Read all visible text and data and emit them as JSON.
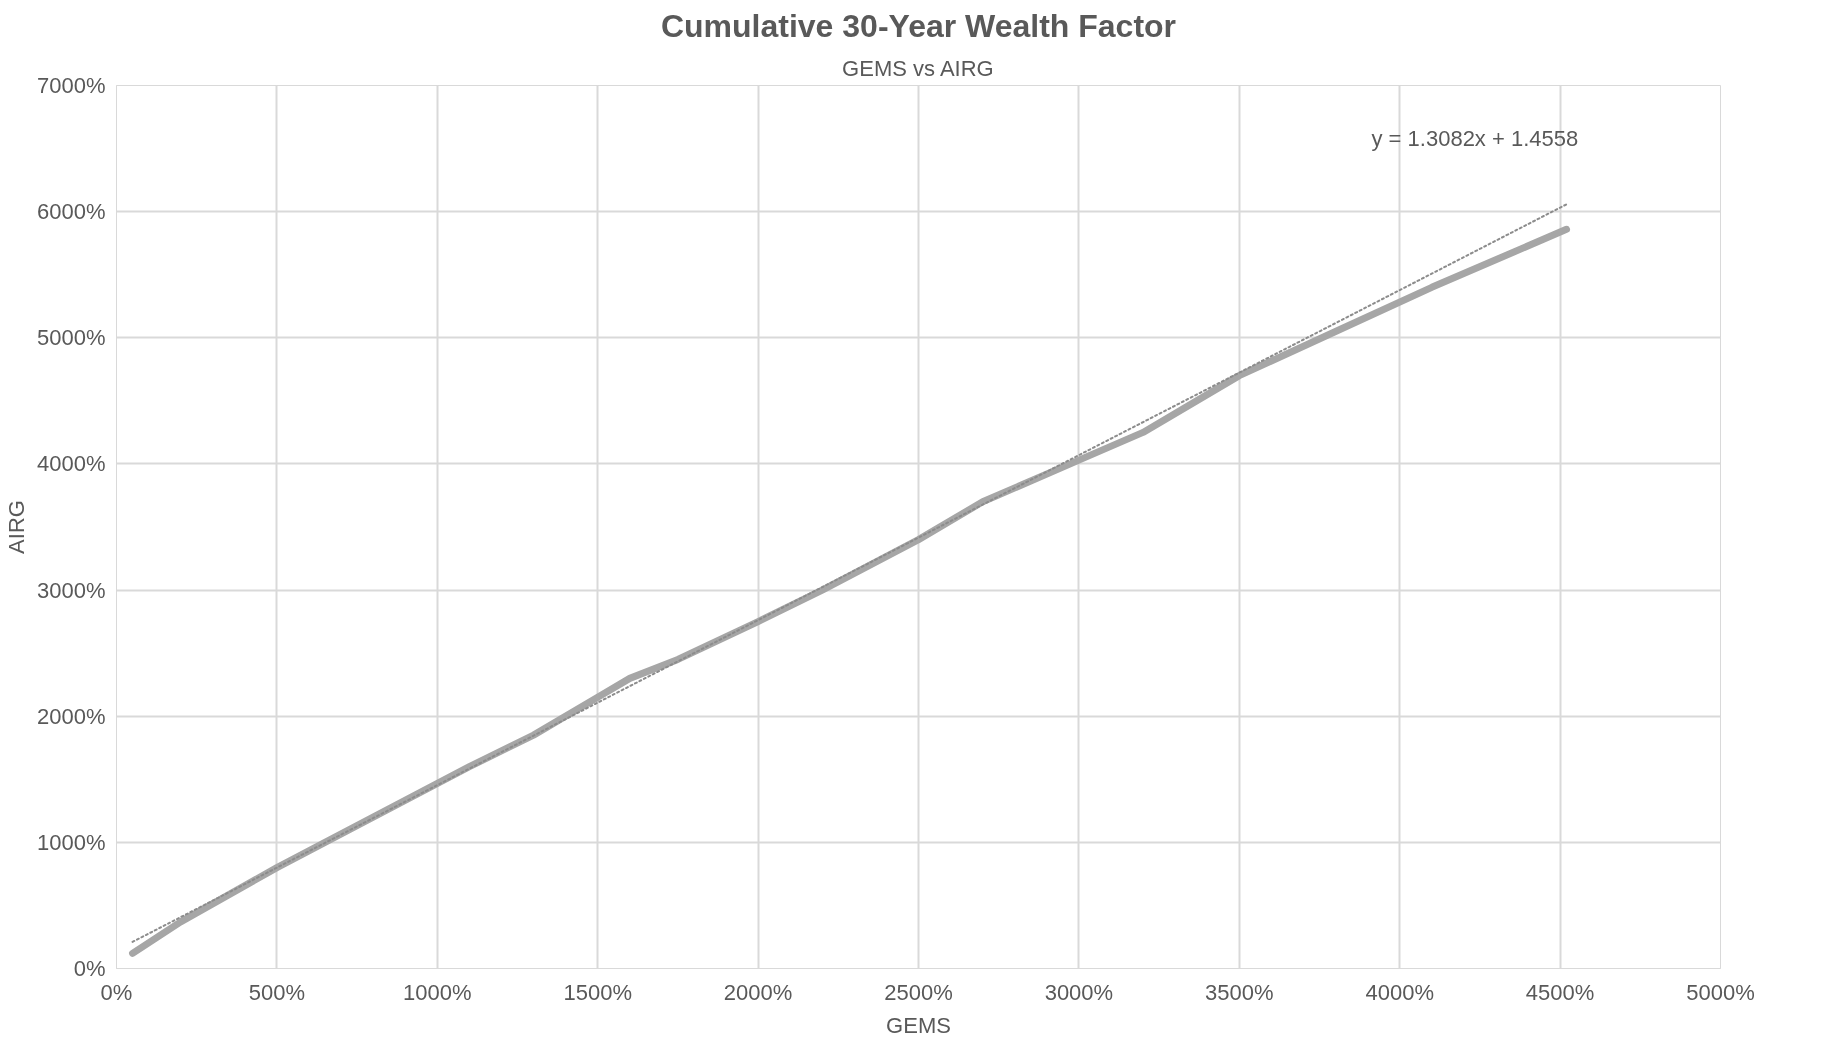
{
  "chart_data": {
    "type": "line",
    "title": "Cumulative 30-Year Wealth Factor",
    "subtitle": "GEMS vs AIRG",
    "xlabel": "GEMS",
    "ylabel": "AIRG",
    "x": [
      50,
      200,
      500,
      650,
      800,
      950,
      1100,
      1300,
      1500,
      1600,
      1750,
      2000,
      2200,
      2500,
      2700,
      3000,
      3200,
      3500,
      3800,
      4100,
      4520
    ],
    "series": [
      {
        "color": "#a6a6a6",
        "values": [
          120,
          370,
          800,
          1000,
          1200,
          1400,
          1600,
          1850,
          2150,
          2300,
          2450,
          2750,
          3000,
          3400,
          3700,
          4030,
          4250,
          4700,
          5050,
          5400,
          5860
        ]
      },
      {
        "type": "line",
        "color": "#8c8c8c",
        "line_style": "dotted",
        "x": [
          50,
          4520
        ],
        "values": [
          211,
          6058
        ]
      }
    ],
    "annotations": [
      "y = 1.3082x + 1.4558"
    ],
    "xlim": [
      0,
      5000
    ],
    "ylim": [
      0,
      7000
    ],
    "xticks": [
      {
        "value": 0,
        "label": "0%"
      },
      {
        "value": 500,
        "label": "500%"
      },
      {
        "value": 1000,
        "label": "1000%"
      },
      {
        "value": 1500,
        "label": "1500%"
      },
      {
        "value": 2000,
        "label": "2000%"
      },
      {
        "value": 2500,
        "label": "2500%"
      },
      {
        "value": 3000,
        "label": "3000%"
      },
      {
        "value": 3500,
        "label": "3500%"
      },
      {
        "value": 4000,
        "label": "4000%"
      },
      {
        "value": 4500,
        "label": "4500%"
      },
      {
        "value": 5000,
        "label": "5000%"
      }
    ],
    "yticks": [
      {
        "value": 0,
        "label": "0%"
      },
      {
        "value": 1000,
        "label": "1000%"
      },
      {
        "value": 2000,
        "label": "2000%"
      },
      {
        "value": 3000,
        "label": "3000%"
      },
      {
        "value": 4000,
        "label": "4000%"
      },
      {
        "value": 5000,
        "label": "5000%"
      },
      {
        "value": 6000,
        "label": "6000%"
      },
      {
        "value": 7000,
        "label": "7000%"
      }
    ],
    "grid": true,
    "line_style": "solid",
    "marker": "none"
  }
}
